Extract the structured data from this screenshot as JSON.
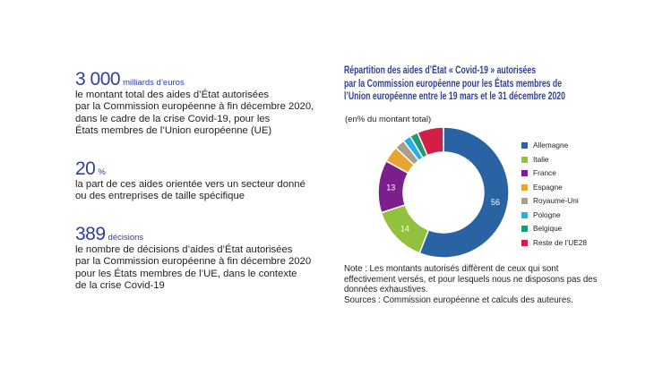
{
  "stats": [
    {
      "value": "3 000",
      "unit": "milliards d’euros",
      "text": "le montant total des aides d’État autorisées\npar la Commission européenne à fin décembre 2020,\ndans le cadre de la crise Covid-19, pour les\nÉtats membres de l’Union européenne (UE)"
    },
    {
      "value": "20",
      "unit": "%",
      "text": "la part de ces aides orientée vers un secteur donné\nou des entreprises de taille spécifique"
    },
    {
      "value": "389",
      "unit": "décisions",
      "text": "le nombre de décisions d’aides d’État autorisées\npar la Commission européenne à fin décembre 2020\npour les États membres de l’UE, dans le contexte\nde la crise Covid-19"
    }
  ],
  "chart_data": {
    "type": "pie",
    "style": "donut",
    "title_lines": [
      "Répartition des aides d’État « Covid-19 » autorisées",
      "par la Commission européenne pour les États membres de",
      "l’Union européenne entre le 19 mars et le 31 décembre 2020"
    ],
    "subtitle": "(en% du montant total)",
    "legend_position": "right",
    "categories": [
      "Allemagne",
      "Italie",
      "France",
      "Espagne",
      "Royaume-Uni",
      "Pologne",
      "Belgique",
      "Reste de l’UE28"
    ],
    "values": [
      56,
      14,
      13,
      4,
      2.5,
      2,
      2,
      6.5
    ],
    "data_labels": [
      "56",
      "14",
      "13",
      "",
      "",
      "",
      "",
      ""
    ],
    "colors": [
      "#2a63a3",
      "#93c13e",
      "#7c1f8c",
      "#e8a532",
      "#a8a08c",
      "#2aaee6",
      "#1f9b74",
      "#d21f46"
    ]
  },
  "note": "Note : Les montants autorisés diffèrent de ceux qui sont effectivement versés, et pour lesquels nous ne disposons pas des données exhaustives.",
  "sources": "Sources : Commission européenne et calculs des auteures."
}
